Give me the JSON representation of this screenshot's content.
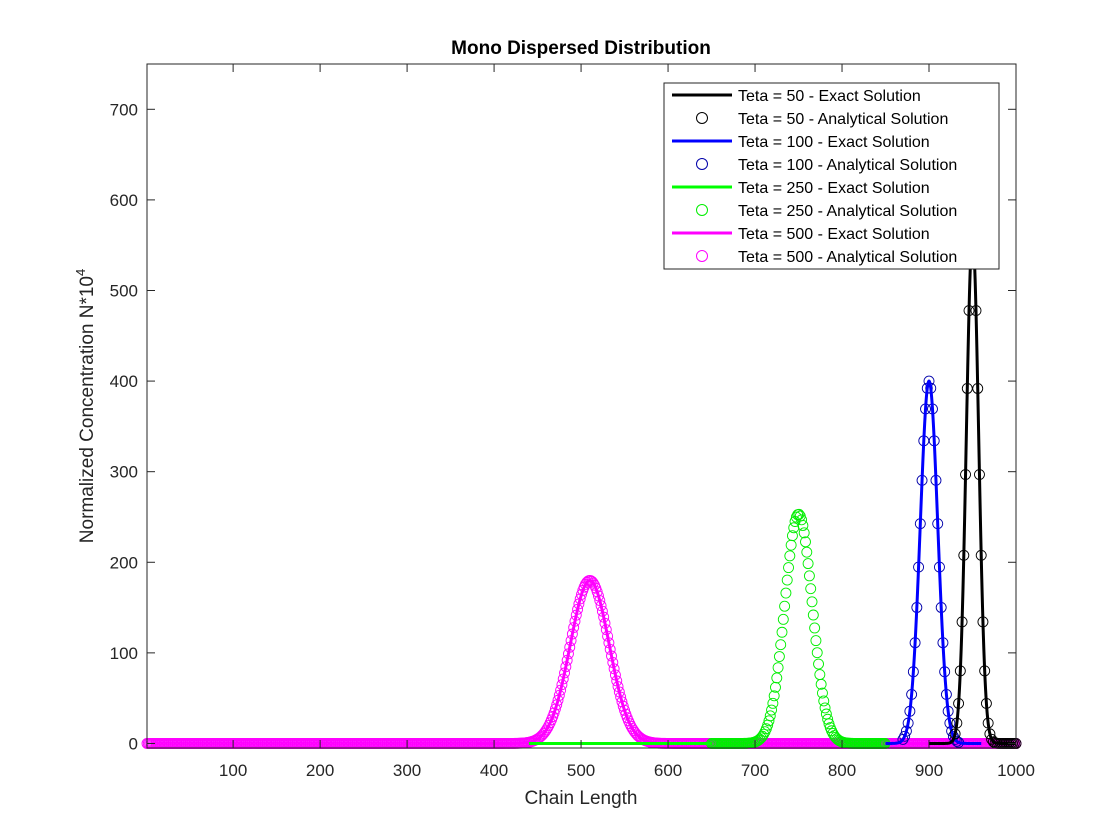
{
  "chart_data": {
    "type": "line",
    "title": "Mono Dispersed Distribution",
    "xlabel": "Chain Length",
    "ylabel": "Normalized Concentration N*10",
    "ylabel_sup": "4",
    "xlim": [
      1,
      1000
    ],
    "ylim": [
      -5,
      750
    ],
    "xticks": [
      100,
      200,
      300,
      400,
      500,
      600,
      700,
      800,
      900,
      1000
    ],
    "yticks": [
      0,
      100,
      200,
      300,
      400,
      500,
      600,
      700
    ],
    "grid": false,
    "legend_position": "top-right",
    "series": [
      {
        "name": "Teta = 50 - Exact Solution",
        "kind": "line",
        "color": "#000000",
        "mean": 950,
        "peak": 560,
        "sigma": 7.1,
        "x_range": [
          900,
          1000
        ]
      },
      {
        "name": "Teta = 50 - Analytical Solution",
        "kind": "markers",
        "color": "#000000",
        "mean": 950,
        "peak": 560,
        "sigma": 7.1,
        "x_range": [
          930,
          1000
        ],
        "step": 2
      },
      {
        "name": "Teta = 100 - Exact Solution",
        "kind": "line",
        "color": "#0000ff",
        "mean": 900,
        "peak": 400,
        "sigma": 10.0,
        "x_range": [
          850,
          960
        ]
      },
      {
        "name": "Teta = 100 - Analytical Solution",
        "kind": "markers",
        "color": "#0000aa",
        "mean": 900,
        "peak": 400,
        "sigma": 10.0,
        "x_range": [
          870,
          935
        ],
        "step": 2
      },
      {
        "name": "Teta = 250 - Exact Solution",
        "kind": "line",
        "color": "#00ff00",
        "mean": 750,
        "peak": 253,
        "sigma": 15.8,
        "x_range": [
          440,
          650
        ]
      },
      {
        "name": "Teta = 250 - Analytical Solution",
        "kind": "markers",
        "color": "#00ee00",
        "mean": 750,
        "peak": 253,
        "sigma": 15.8,
        "x_range": [
          650,
          850
        ],
        "step": 1.5
      },
      {
        "name": "Teta = 500 - Exact Solution",
        "kind": "line",
        "color": "#ff00ff",
        "mean": 510,
        "peak": 180,
        "sigma": 22.4,
        "x_range": [
          380,
          1000
        ]
      },
      {
        "name": "Teta = 500 - Analytical Solution",
        "kind": "markers",
        "color": "#ff00ff",
        "mean": 510,
        "peak": 180,
        "sigma": 22.4,
        "x_range": [
          1,
          1000
        ],
        "step": 1.5
      }
    ]
  }
}
